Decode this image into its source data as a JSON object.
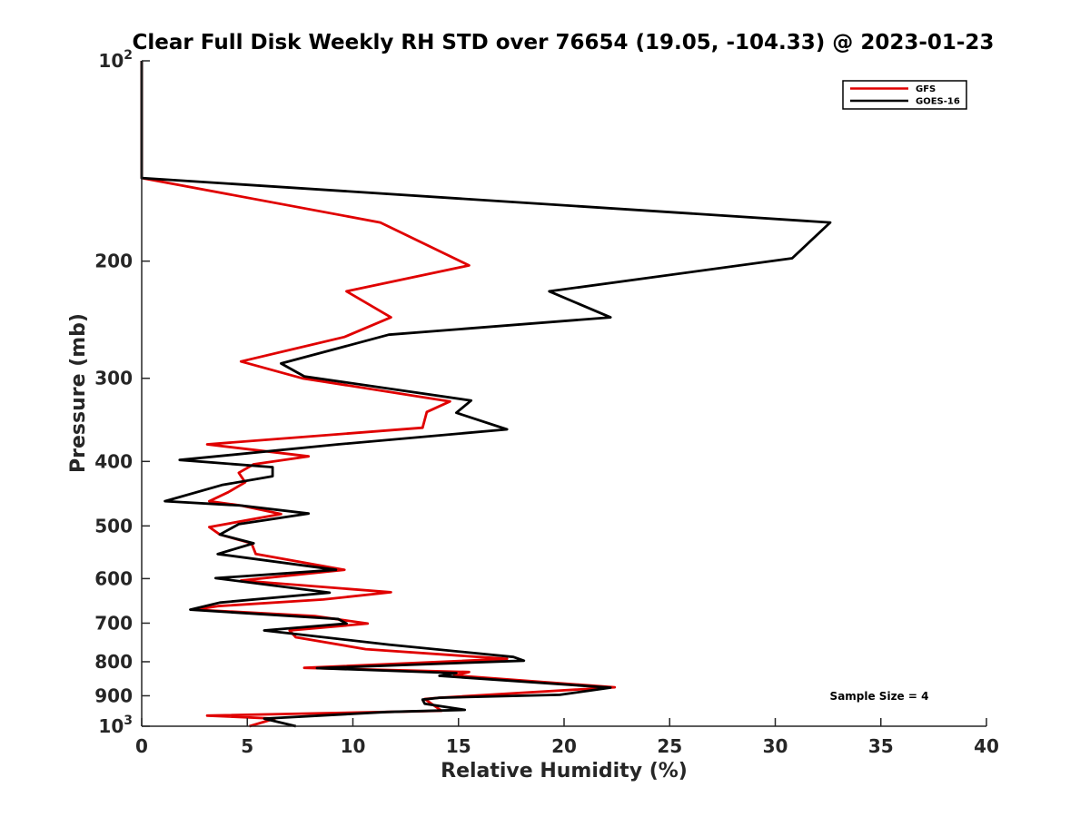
{
  "chart_data": {
    "type": "line",
    "title": "Clear Full Disk Weekly RH STD over 76654 (19.05, -104.33) @ 2023-01-23",
    "xlabel": "Relative Humidity (%)",
    "ylabel": "Pressure (mb)",
    "xlim": [
      0,
      40
    ],
    "ylim": [
      100,
      1000
    ],
    "yscale": "log",
    "y_reversed": true,
    "grid": false,
    "legend_position": "top-right",
    "x_ticks": [
      0,
      5,
      10,
      15,
      20,
      25,
      30,
      35,
      40
    ],
    "x_tick_labels": [
      "0",
      "5",
      "10",
      "15",
      "20",
      "25",
      "30",
      "35",
      "40"
    ],
    "y_ticks": [
      100,
      200,
      300,
      400,
      500,
      600,
      700,
      800,
      900,
      1000
    ],
    "y_tick_labels": [
      {
        "base": "10",
        "sup": "2"
      },
      {
        "base": "200",
        "sup": ""
      },
      {
        "base": "300",
        "sup": ""
      },
      {
        "base": "400",
        "sup": ""
      },
      {
        "base": "500",
        "sup": ""
      },
      {
        "base": "600",
        "sup": ""
      },
      {
        "base": "700",
        "sup": ""
      },
      {
        "base": "800",
        "sup": ""
      },
      {
        "base": "900",
        "sup": ""
      },
      {
        "base": "10",
        "sup": "3"
      }
    ],
    "series": [
      {
        "name": "GFS",
        "color": "#e00000",
        "points": [
          [
            0,
            100
          ],
          [
            0,
            150
          ],
          [
            11.3,
            175
          ],
          [
            15.5,
            203
          ],
          [
            9.7,
            222
          ],
          [
            11.8,
            243
          ],
          [
            9.6,
            260
          ],
          [
            4.7,
            283
          ],
          [
            7.6,
            300
          ],
          [
            14.6,
            325
          ],
          [
            13.5,
            337
          ],
          [
            13.3,
            356
          ],
          [
            3.1,
            377
          ],
          [
            7.9,
            393
          ],
          [
            5.3,
            404
          ],
          [
            4.6,
            416
          ],
          [
            4.9,
            430
          ],
          [
            4.1,
            445
          ],
          [
            3.2,
            459
          ],
          [
            4.7,
            466
          ],
          [
            6.6,
            480
          ],
          [
            3.2,
            502
          ],
          [
            3.7,
            515
          ],
          [
            5.2,
            531
          ],
          [
            5.4,
            551
          ],
          [
            9.6,
            582
          ],
          [
            4.7,
            604
          ],
          [
            11.8,
            629
          ],
          [
            8.6,
            645
          ],
          [
            3.6,
            660
          ],
          [
            2.5,
            668
          ],
          [
            8.2,
            683
          ],
          [
            10.7,
            701
          ],
          [
            7.0,
            718
          ],
          [
            7.3,
            735
          ],
          [
            10.6,
            766
          ],
          [
            17.3,
            792
          ],
          [
            7.7,
            817
          ],
          [
            15.5,
            829
          ],
          [
            14.8,
            839
          ],
          [
            22.4,
            874
          ],
          [
            14.1,
            906
          ],
          [
            13.4,
            910
          ],
          [
            14.2,
            948
          ],
          [
            11.5,
            952
          ],
          [
            3.1,
            964
          ],
          [
            6.3,
            974
          ],
          [
            5.1,
            1000
          ]
        ]
      },
      {
        "name": "GOES-16",
        "color": "#000000",
        "points": [
          [
            0,
            100
          ],
          [
            0,
            150
          ],
          [
            32.6,
            175
          ],
          [
            30.8,
            198
          ],
          [
            19.3,
            222
          ],
          [
            22.2,
            243
          ],
          [
            11.7,
            258
          ],
          [
            6.6,
            285
          ],
          [
            7.7,
            298
          ],
          [
            15.6,
            324
          ],
          [
            14.9,
            338
          ],
          [
            17.3,
            358
          ],
          [
            9.3,
            377
          ],
          [
            1.8,
            398
          ],
          [
            6.2,
            408
          ],
          [
            6.2,
            421
          ],
          [
            3.8,
            434
          ],
          [
            1.1,
            459
          ],
          [
            4.7,
            466
          ],
          [
            7.9,
            479
          ],
          [
            4.6,
            497
          ],
          [
            3.7,
            515
          ],
          [
            5.3,
            531
          ],
          [
            3.6,
            551
          ],
          [
            9.2,
            582
          ],
          [
            3.5,
            599
          ],
          [
            8.9,
            630
          ],
          [
            3.7,
            652
          ],
          [
            2.3,
            668
          ],
          [
            9.3,
            690
          ],
          [
            9.7,
            701
          ],
          [
            5.8,
            718
          ],
          [
            11.7,
            754
          ],
          [
            17.6,
            787
          ],
          [
            18.1,
            797
          ],
          [
            8.3,
            818
          ],
          [
            14.9,
            832
          ],
          [
            14.1,
            840
          ],
          [
            22.2,
            875
          ],
          [
            19.8,
            897
          ],
          [
            14.1,
            906
          ],
          [
            13.3,
            912
          ],
          [
            13.4,
            925
          ],
          [
            15.3,
            945
          ],
          [
            11.6,
            952
          ],
          [
            5.8,
            974
          ],
          [
            7.3,
            1000
          ]
        ]
      }
    ],
    "annotations": [
      {
        "text": "Sample Size = 4",
        "position": "bottom-right"
      }
    ]
  }
}
